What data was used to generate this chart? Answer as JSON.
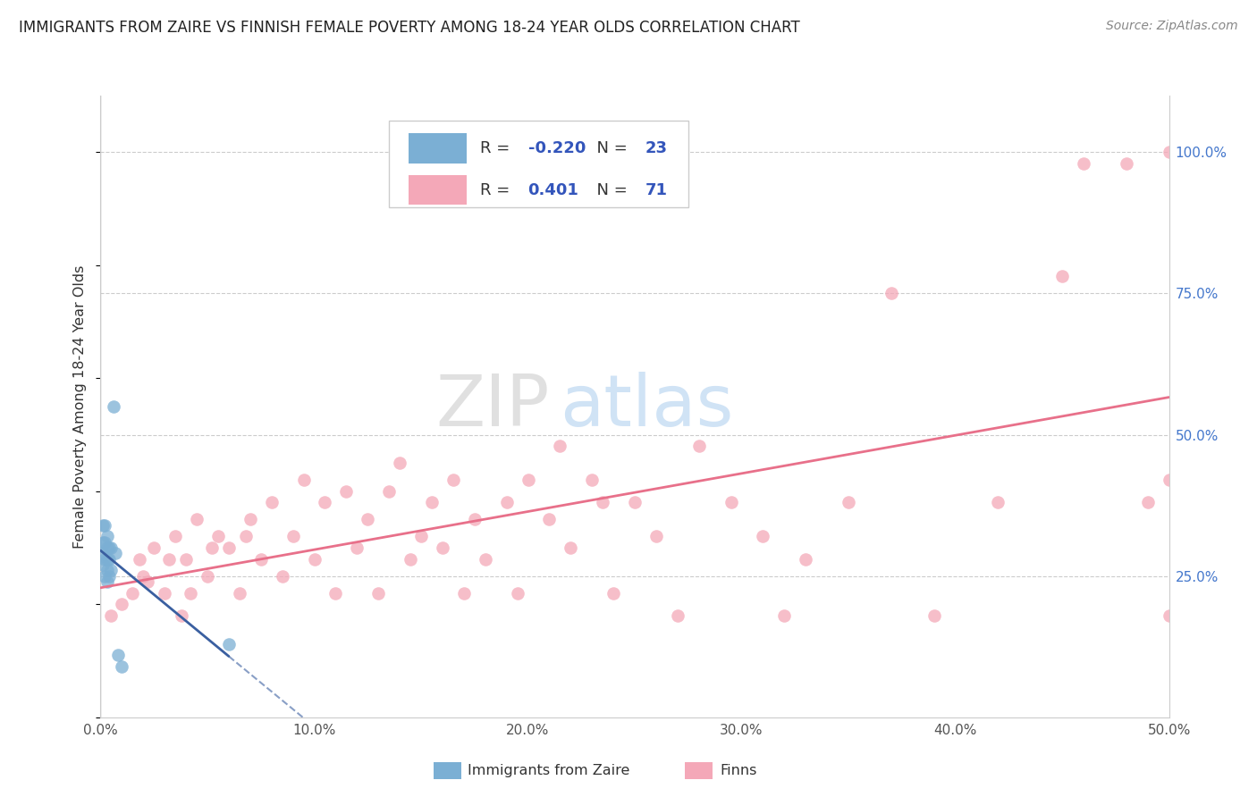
{
  "title": "IMMIGRANTS FROM ZAIRE VS FINNISH FEMALE POVERTY AMONG 18-24 YEAR OLDS CORRELATION CHART",
  "source": "Source: ZipAtlas.com",
  "ylabel": "Female Poverty Among 18-24 Year Olds",
  "xlim": [
    0.0,
    0.5
  ],
  "ylim": [
    0.0,
    1.1
  ],
  "xtick_labels": [
    "0.0%",
    "10.0%",
    "20.0%",
    "30.0%",
    "40.0%",
    "50.0%"
  ],
  "xtick_vals": [
    0.0,
    0.1,
    0.2,
    0.3,
    0.4,
    0.5
  ],
  "ytick_vals": [
    0.25,
    0.5,
    0.75,
    1.0
  ],
  "ytick_labels": [
    "25.0%",
    "50.0%",
    "75.0%",
    "100.0%"
  ],
  "blue_label": "Immigrants from Zaire",
  "pink_label": "Finns",
  "blue_R": -0.22,
  "blue_N": 23,
  "pink_R": 0.401,
  "pink_N": 71,
  "blue_color": "#7BAFD4",
  "pink_color": "#F4A8B8",
  "blue_line_color": "#3A5FA0",
  "pink_line_color": "#E8708A",
  "watermark_zip": "ZIP",
  "watermark_atlas": "atlas",
  "background_color": "#FFFFFF",
  "blue_scatter_x": [
    0.001,
    0.001,
    0.001,
    0.001,
    0.002,
    0.002,
    0.002,
    0.002,
    0.003,
    0.003,
    0.003,
    0.003,
    0.003,
    0.004,
    0.004,
    0.004,
    0.005,
    0.005,
    0.006,
    0.007,
    0.008,
    0.01,
    0.06
  ],
  "blue_scatter_y": [
    0.27,
    0.29,
    0.31,
    0.34,
    0.25,
    0.28,
    0.31,
    0.34,
    0.24,
    0.26,
    0.28,
    0.3,
    0.32,
    0.25,
    0.28,
    0.3,
    0.26,
    0.3,
    0.55,
    0.29,
    0.11,
    0.09,
    0.13
  ],
  "pink_scatter_x": [
    0.005,
    0.01,
    0.015,
    0.018,
    0.02,
    0.022,
    0.025,
    0.03,
    0.032,
    0.035,
    0.038,
    0.04,
    0.042,
    0.045,
    0.05,
    0.052,
    0.055,
    0.06,
    0.065,
    0.068,
    0.07,
    0.075,
    0.08,
    0.085,
    0.09,
    0.095,
    0.1,
    0.105,
    0.11,
    0.115,
    0.12,
    0.125,
    0.13,
    0.135,
    0.14,
    0.145,
    0.15,
    0.155,
    0.16,
    0.165,
    0.17,
    0.175,
    0.18,
    0.19,
    0.195,
    0.2,
    0.21,
    0.215,
    0.22,
    0.23,
    0.235,
    0.24,
    0.25,
    0.26,
    0.27,
    0.28,
    0.295,
    0.31,
    0.32,
    0.33,
    0.35,
    0.37,
    0.39,
    0.42,
    0.45,
    0.46,
    0.48,
    0.49,
    0.5,
    0.5,
    0.5
  ],
  "pink_scatter_y": [
    0.18,
    0.2,
    0.22,
    0.28,
    0.25,
    0.24,
    0.3,
    0.22,
    0.28,
    0.32,
    0.18,
    0.28,
    0.22,
    0.35,
    0.25,
    0.3,
    0.32,
    0.3,
    0.22,
    0.32,
    0.35,
    0.28,
    0.38,
    0.25,
    0.32,
    0.42,
    0.28,
    0.38,
    0.22,
    0.4,
    0.3,
    0.35,
    0.22,
    0.4,
    0.45,
    0.28,
    0.32,
    0.38,
    0.3,
    0.42,
    0.22,
    0.35,
    0.28,
    0.38,
    0.22,
    0.42,
    0.35,
    0.48,
    0.3,
    0.42,
    0.38,
    0.22,
    0.38,
    0.32,
    0.18,
    0.48,
    0.38,
    0.32,
    0.18,
    0.28,
    0.38,
    0.75,
    0.18,
    0.38,
    0.78,
    0.98,
    0.98,
    0.38,
    0.18,
    0.42,
    1.0
  ]
}
